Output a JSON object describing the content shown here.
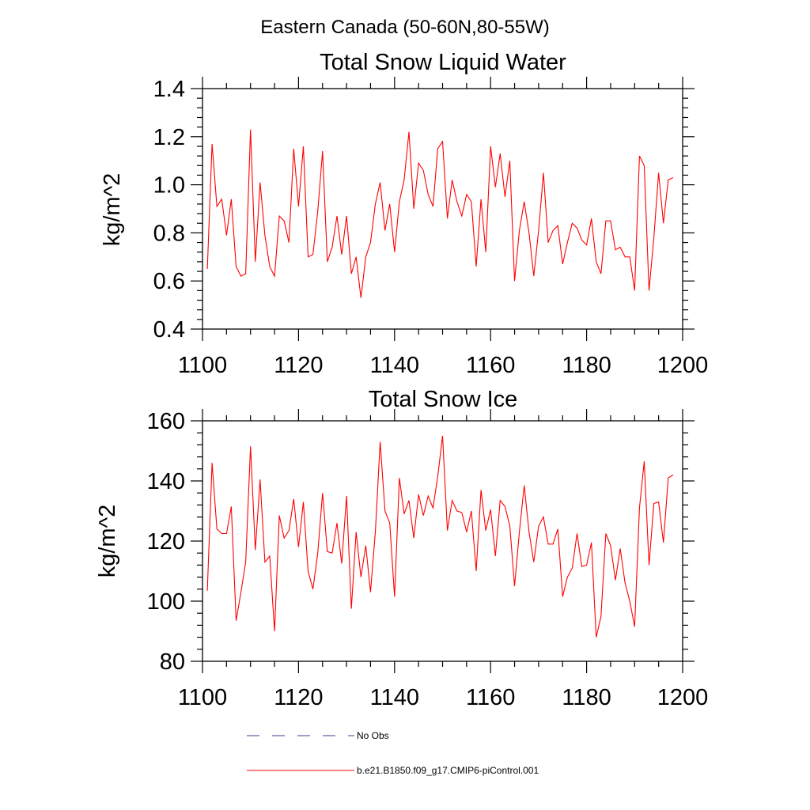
{
  "figure": {
    "suptitle": "Eastern Canada (50-60N,80-55W)"
  },
  "legend": [
    {
      "label": "No Obs",
      "color": "#3b3b8f",
      "dash": "dashed"
    },
    {
      "label": "b.e21.B1850.f09_g17.CMIP6-piControl.001",
      "color": "#ff0000",
      "dash": "solid"
    }
  ],
  "chart_data": [
    {
      "type": "line",
      "title": "Total Snow Liquid Water",
      "xlabel": "",
      "ylabel": "kg/m^2",
      "xlim": [
        1100,
        1200
      ],
      "ylim": [
        0.4,
        1.4
      ],
      "xticks": [
        1100,
        1120,
        1140,
        1160,
        1180,
        1200
      ],
      "yticks": [
        0.4,
        0.6,
        0.8,
        1.0,
        1.2,
        1.4
      ],
      "ytick_labels": [
        "0.4",
        "0.6",
        "0.8",
        "1.0",
        "1.2",
        "1.4"
      ],
      "series": [
        {
          "name": "b.e21.B1850.f09_g17.CMIP6-piControl.001",
          "color": "#ff0000",
          "x_start": 1101,
          "values": [
            0.65,
            1.17,
            0.91,
            0.94,
            0.79,
            0.94,
            0.66,
            0.62,
            0.63,
            1.23,
            0.68,
            1.01,
            0.79,
            0.66,
            0.62,
            0.87,
            0.85,
            0.76,
            1.15,
            0.91,
            1.16,
            0.7,
            0.71,
            0.89,
            1.14,
            0.68,
            0.74,
            0.87,
            0.71,
            0.87,
            0.63,
            0.7,
            0.53,
            0.7,
            0.76,
            0.92,
            1.01,
            0.81,
            0.92,
            0.72,
            0.93,
            1.02,
            1.22,
            0.9,
            1.09,
            1.06,
            0.96,
            0.91,
            1.15,
            1.18,
            0.86,
            1.02,
            0.93,
            0.87,
            0.96,
            0.93,
            0.66,
            0.94,
            0.72,
            1.16,
            0.99,
            1.13,
            0.95,
            1.1,
            0.6,
            0.81,
            0.93,
            0.8,
            0.62,
            0.81,
            1.05,
            0.76,
            0.81,
            0.83,
            0.67,
            0.76,
            0.84,
            0.82,
            0.77,
            0.75,
            0.86,
            0.68,
            0.63,
            0.85,
            0.85,
            0.73,
            0.74,
            0.7,
            0.7,
            0.56,
            1.12,
            1.08,
            0.56,
            0.78,
            1.05,
            0.84,
            1.02,
            1.03
          ]
        }
      ]
    },
    {
      "type": "line",
      "title": "Total Snow Ice",
      "xlabel": "",
      "ylabel": "kg/m^2",
      "xlim": [
        1100,
        1200
      ],
      "ylim": [
        80,
        160
      ],
      "xticks": [
        1100,
        1120,
        1140,
        1160,
        1180,
        1200
      ],
      "yticks": [
        80,
        100,
        120,
        140,
        160
      ],
      "ytick_labels": [
        "80",
        "100",
        "120",
        "140",
        "160"
      ],
      "series": [
        {
          "name": "b.e21.B1850.f09_g17.CMIP6-piControl.001",
          "color": "#ff0000",
          "x_start": 1101,
          "values": [
            103.5,
            146,
            124,
            122.5,
            122.5,
            131.5,
            93.5,
            103,
            113,
            151.5,
            117,
            140.5,
            113,
            115,
            90,
            128.5,
            121,
            123.5,
            134,
            118,
            133,
            110,
            104,
            116,
            136,
            116.5,
            116,
            126,
            112.5,
            135,
            97.5,
            123,
            108,
            118.5,
            103,
            123,
            153,
            130,
            126,
            101.5,
            141,
            129,
            133.5,
            121,
            135.5,
            128.5,
            135,
            131,
            141.5,
            155,
            123.5,
            133.5,
            130,
            129.5,
            123,
            130,
            110,
            137,
            123.5,
            130.5,
            115,
            133.5,
            131.5,
            125,
            105,
            123,
            138.5,
            123,
            113,
            125,
            128,
            119,
            119,
            124,
            101.5,
            108,
            111,
            122.5,
            111.5,
            112,
            119.5,
            88,
            95,
            122.5,
            118.5,
            107,
            117.5,
            106,
            100,
            91.5,
            131,
            146.5,
            112,
            132.5,
            133,
            119.5,
            141,
            142
          ]
        }
      ]
    }
  ]
}
